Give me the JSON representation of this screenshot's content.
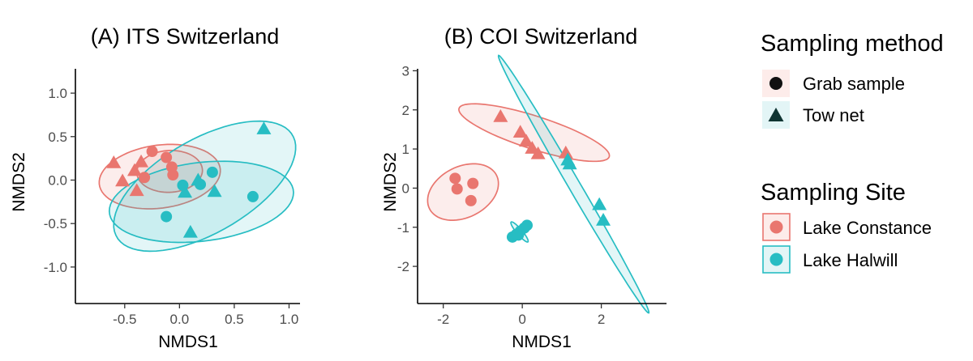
{
  "colors": {
    "lake_constance": "#E9766F",
    "lake_halwill": "#27BDC3"
  },
  "legend": {
    "method": {
      "title": "Sampling method",
      "items": [
        {
          "label": "Grab sample",
          "shape": "circle"
        },
        {
          "label": "Tow net",
          "shape": "triangle"
        }
      ]
    },
    "site": {
      "title": "Sampling Site",
      "items": [
        {
          "label": "Lake Constance",
          "series": "lake_constance"
        },
        {
          "label": "Lake Halwill",
          "series": "lake_halwill"
        }
      ]
    }
  },
  "chart_data": [
    {
      "type": "scatter",
      "title": "(A) ITS Switzerland",
      "xlabel": "NMDS1",
      "ylabel": "NMDS2",
      "xlim": [
        -0.95,
        1.1
      ],
      "ylim": [
        -1.42,
        1.28
      ],
      "xticks": [
        -0.5,
        0.0,
        0.5,
        1.0
      ],
      "xtick_labels": [
        "-0.5",
        "0.0",
        "0.5",
        "1.0"
      ],
      "yticks": [
        1.0,
        0.5,
        0.0,
        -0.5,
        -1.0
      ],
      "ytick_labels": [
        "1.0",
        "0.5",
        "0.0",
        "-0.5",
        "-1.0"
      ],
      "ellipses": [
        {
          "series": "lake_constance",
          "method": "grab",
          "cx": -0.09,
          "cy": 0.1,
          "rx": 0.24,
          "ry": 0.3,
          "angle": -84
        },
        {
          "series": "lake_constance",
          "method": "tow",
          "cx": -0.18,
          "cy": 0.04,
          "rx": 0.56,
          "ry": 0.36,
          "angle": 12
        },
        {
          "series": "lake_halwill",
          "method": "grab",
          "cx": 0.2,
          "cy": -0.25,
          "rx": 0.85,
          "ry": 0.45,
          "angle": 10
        },
        {
          "series": "lake_halwill",
          "method": "tow",
          "cx": 0.23,
          "cy": -0.07,
          "rx": 1.0,
          "ry": 0.5,
          "angle": 40
        }
      ],
      "points": [
        {
          "series": "lake_constance",
          "shape": "circle",
          "x": -0.25,
          "y": 0.33
        },
        {
          "series": "lake_constance",
          "shape": "circle",
          "x": -0.32,
          "y": 0.03
        },
        {
          "series": "lake_constance",
          "shape": "circle",
          "x": -0.12,
          "y": 0.26
        },
        {
          "series": "lake_constance",
          "shape": "circle",
          "x": -0.07,
          "y": 0.15
        },
        {
          "series": "lake_constance",
          "shape": "circle",
          "x": -0.06,
          "y": 0.06
        },
        {
          "series": "lake_constance",
          "shape": "triangle",
          "x": -0.6,
          "y": 0.2
        },
        {
          "series": "lake_constance",
          "shape": "triangle",
          "x": -0.35,
          "y": 0.21
        },
        {
          "series": "lake_constance",
          "shape": "triangle",
          "x": -0.41,
          "y": 0.11
        },
        {
          "series": "lake_constance",
          "shape": "triangle",
          "x": -0.52,
          "y": -0.01
        },
        {
          "series": "lake_constance",
          "shape": "triangle",
          "x": -0.39,
          "y": -0.12
        },
        {
          "series": "lake_halwill",
          "shape": "circle",
          "x": 0.03,
          "y": -0.06
        },
        {
          "series": "lake_halwill",
          "shape": "circle",
          "x": 0.19,
          "y": -0.05
        },
        {
          "series": "lake_halwill",
          "shape": "circle",
          "x": 0.3,
          "y": 0.09
        },
        {
          "series": "lake_halwill",
          "shape": "circle",
          "x": -0.12,
          "y": -0.42
        },
        {
          "series": "lake_halwill",
          "shape": "circle",
          "x": 0.67,
          "y": -0.19
        },
        {
          "series": "lake_halwill",
          "shape": "triangle",
          "x": 0.77,
          "y": 0.59
        },
        {
          "series": "lake_halwill",
          "shape": "triangle",
          "x": 0.17,
          "y": 0.0
        },
        {
          "series": "lake_halwill",
          "shape": "triangle",
          "x": 0.05,
          "y": -0.14
        },
        {
          "series": "lake_halwill",
          "shape": "triangle",
          "x": 0.32,
          "y": -0.13
        },
        {
          "series": "lake_halwill",
          "shape": "triangle",
          "x": 0.1,
          "y": -0.6
        }
      ]
    },
    {
      "type": "scatter",
      "title": "(B) COI Switzerland",
      "xlabel": "NMDS1",
      "ylabel": "NMDS2",
      "xlim": [
        -2.65,
        3.65
      ],
      "ylim": [
        -2.95,
        3.05
      ],
      "xticks": [
        -2,
        0,
        2
      ],
      "xtick_labels": [
        "-2",
        "0",
        "2"
      ],
      "yticks": [
        3,
        2,
        1,
        0,
        -1,
        -2
      ],
      "ytick_labels": [
        "3",
        "2",
        "1",
        "0",
        "-1",
        "-2"
      ],
      "ellipses": [
        {
          "series": "lake_constance",
          "method": "grab",
          "cx": -1.5,
          "cy": -0.1,
          "rx": 0.65,
          "ry": 0.95,
          "angle": -63
        },
        {
          "series": "lake_constance",
          "method": "tow",
          "cx": 0.3,
          "cy": 1.42,
          "rx": 2.0,
          "ry": 0.42,
          "angle": -18
        },
        {
          "series": "lake_halwill",
          "method": "grab",
          "cx": -0.07,
          "cy": -1.12,
          "rx": 0.33,
          "ry": 0.07,
          "angle": -50
        },
        {
          "series": "lake_halwill",
          "method": "tow",
          "cx": 1.3,
          "cy": 0.1,
          "rx": 3.8,
          "ry": 0.15,
          "angle": -60
        }
      ],
      "points": [
        {
          "series": "lake_constance",
          "shape": "circle",
          "x": -1.7,
          "y": 0.25
        },
        {
          "series": "lake_constance",
          "shape": "circle",
          "x": -1.65,
          "y": -0.02
        },
        {
          "series": "lake_constance",
          "shape": "circle",
          "x": -1.25,
          "y": 0.12
        },
        {
          "series": "lake_constance",
          "shape": "circle",
          "x": -1.3,
          "y": -0.32
        },
        {
          "series": "lake_constance",
          "shape": "triangle",
          "x": -0.55,
          "y": 1.83
        },
        {
          "series": "lake_constance",
          "shape": "triangle",
          "x": -0.05,
          "y": 1.43
        },
        {
          "series": "lake_constance",
          "shape": "triangle",
          "x": 0.1,
          "y": 1.2
        },
        {
          "series": "lake_constance",
          "shape": "triangle",
          "x": 0.25,
          "y": 1.02
        },
        {
          "series": "lake_constance",
          "shape": "triangle",
          "x": 0.4,
          "y": 0.88
        },
        {
          "series": "lake_constance",
          "shape": "triangle",
          "x": 1.1,
          "y": 0.9
        },
        {
          "series": "lake_halwill",
          "shape": "circle",
          "x": -0.25,
          "y": -1.25
        },
        {
          "series": "lake_halwill",
          "shape": "circle",
          "x": -0.15,
          "y": -1.18
        },
        {
          "series": "lake_halwill",
          "shape": "circle",
          "x": -0.05,
          "y": -1.1
        },
        {
          "series": "lake_halwill",
          "shape": "circle",
          "x": 0.05,
          "y": -1.02
        },
        {
          "series": "lake_halwill",
          "shape": "circle",
          "x": 0.12,
          "y": -0.95
        },
        {
          "series": "lake_halwill",
          "shape": "circle",
          "x": -0.1,
          "y": -1.2
        },
        {
          "series": "lake_halwill",
          "shape": "triangle",
          "x": 1.15,
          "y": 0.72
        },
        {
          "series": "lake_halwill",
          "shape": "triangle",
          "x": 1.2,
          "y": 0.62
        },
        {
          "series": "lake_halwill",
          "shape": "triangle",
          "x": 1.95,
          "y": -0.42
        },
        {
          "series": "lake_halwill",
          "shape": "triangle",
          "x": 2.05,
          "y": -0.82
        }
      ]
    }
  ]
}
